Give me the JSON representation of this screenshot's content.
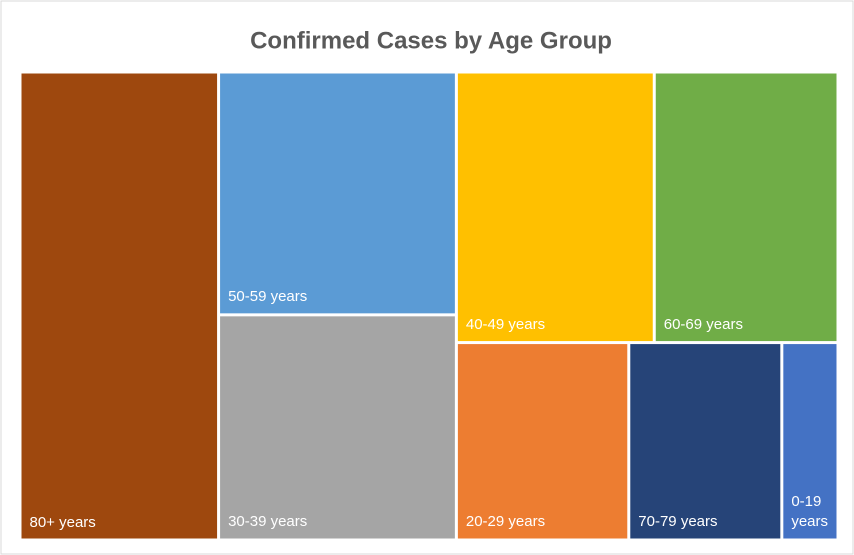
{
  "chart_data": {
    "type": "treemap",
    "title": "Confirmed Cases by Age Group",
    "categories": [
      "80+ years",
      "50-59 years",
      "30-39 years",
      "40-49 years",
      "60-69 years",
      "20-29 years",
      "70-79 years",
      "0-19 years"
    ],
    "values": [
      24.3,
      15.1,
      14.0,
      14.0,
      13.0,
      8.9,
      7.9,
      2.9
    ],
    "colors": [
      "#9e480e",
      "#5b9bd5",
      "#a5a5a5",
      "#ffc000",
      "#70ad47",
      "#ed7d31",
      "#264478",
      "#4472c4"
    ]
  }
}
